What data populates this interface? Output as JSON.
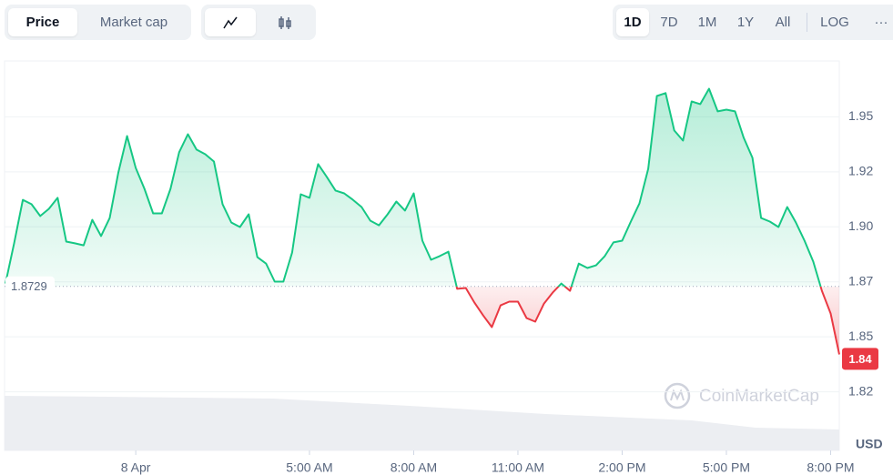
{
  "ui": {
    "tabs": [
      "Price",
      "Market cap"
    ],
    "ranges": [
      "1D",
      "7D",
      "1M",
      "1Y",
      "All"
    ],
    "scale": "LOG",
    "more": "···"
  },
  "chart_data": {
    "type": "line",
    "x": [
      -3.75,
      -3.5,
      -3.25,
      -3,
      -2.75,
      -2.5,
      -2.25,
      -2,
      -1.75,
      -1.5,
      -1.25,
      -1,
      -0.75,
      -0.5,
      -0.25,
      0,
      0.25,
      0.5,
      0.75,
      1,
      1.25,
      1.5,
      1.75,
      2,
      2.25,
      2.5,
      2.75,
      3,
      3.25,
      3.5,
      3.75,
      4,
      4.25,
      4.5,
      4.75,
      5,
      5.25,
      5.5,
      5.75,
      6,
      6.25,
      6.5,
      6.75,
      7,
      7.25,
      7.5,
      7.75,
      8,
      8.25,
      8.5,
      8.75,
      9,
      9.25,
      9.5,
      9.75,
      10,
      10.25,
      10.5,
      10.75,
      11,
      11.25,
      11.5,
      11.75,
      12,
      12.25,
      12.5,
      12.75,
      13,
      13.25,
      13.5,
      13.75,
      14,
      14.25,
      14.5,
      14.75,
      15,
      15.25,
      15.5,
      15.75,
      16,
      16.25,
      16.5,
      16.75,
      17,
      17.25,
      17.5,
      17.75,
      18,
      18.25,
      18.5,
      18.75,
      19,
      19.25,
      19.5,
      19.75,
      20,
      20.25
    ],
    "series": [
      {
        "up_color": "#16c784",
        "down_color": "#ea3943",
        "values": [
          1.8742,
          1.8925,
          1.9123,
          1.9103,
          1.9049,
          1.9082,
          1.9132,
          1.8933,
          1.8925,
          1.8916,
          1.9032,
          1.8958,
          1.904,
          1.9247,
          1.9413,
          1.9268,
          1.9173,
          1.9061,
          1.9061,
          1.9173,
          1.9339,
          1.9421,
          1.9351,
          1.933,
          1.9297,
          1.9103,
          1.902,
          1.8999,
          1.9057,
          1.8862,
          1.8833,
          1.8751,
          1.8751,
          1.8883,
          1.9148,
          1.9132,
          1.9285,
          1.9227,
          1.9165,
          1.9152,
          1.9123,
          1.909,
          1.9028,
          1.9007,
          1.9057,
          1.9115,
          1.9074,
          1.9152,
          1.8937,
          1.885,
          1.8867,
          1.8887,
          1.8718,
          1.8722,
          1.8655,
          1.8597,
          1.8544,
          1.8643,
          1.866,
          1.866,
          1.8585,
          1.8569,
          1.8651,
          1.8701,
          1.8742,
          1.8709,
          1.8833,
          1.8813,
          1.8825,
          1.8867,
          1.8929,
          1.8937,
          1.9024,
          1.9107,
          1.9264,
          1.9595,
          1.9608,
          1.9438,
          1.9392,
          1.957,
          1.9558,
          1.9628,
          1.9525,
          1.9533,
          1.9525,
          1.9405,
          1.9314,
          1.904,
          1.9024,
          1.8999,
          1.909,
          1.902,
          1.8937,
          1.8842,
          1.8709,
          1.8606,
          1.842
        ]
      }
    ],
    "reference_price": 1.8729,
    "current_price": 1.84,
    "xlim": [
      -3.75,
      20.25
    ],
    "xticks": [
      {
        "value": 0,
        "label": "8 Apr"
      },
      {
        "value": 5,
        "label": "5:00 AM"
      },
      {
        "value": 8,
        "label": "8:00 AM"
      },
      {
        "value": 11,
        "label": "11:00 AM"
      },
      {
        "value": 14,
        "label": "2:00 PM"
      },
      {
        "value": 17,
        "label": "5:00 PM"
      },
      {
        "value": 20,
        "label": "8:00 PM"
      }
    ],
    "ylim": [
      1.8,
      1.975
    ],
    "yticks": [
      {
        "value": 1.825,
        "label": "1.82"
      },
      {
        "value": 1.85,
        "label": "1.85"
      },
      {
        "value": 1.875,
        "label": "1.87"
      },
      {
        "value": 1.9,
        "label": "1.90"
      },
      {
        "value": 1.925,
        "label": "1.92"
      },
      {
        "value": 1.95,
        "label": "1.95"
      }
    ],
    "grid": true,
    "currency": "USD",
    "watermark": "CoinMarketCap"
  }
}
